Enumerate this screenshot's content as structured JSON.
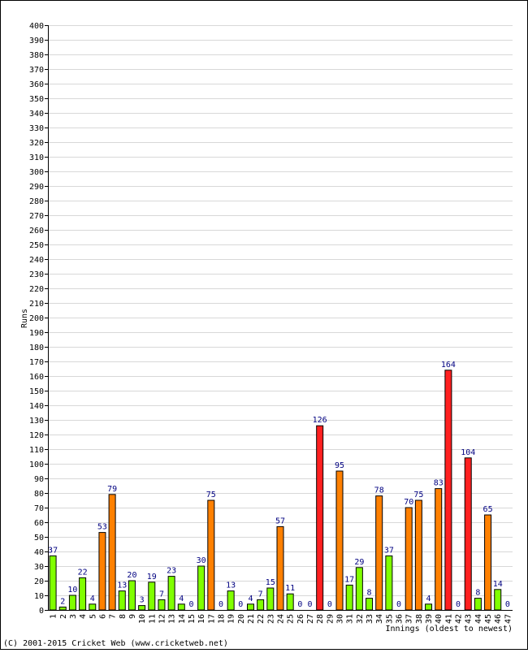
{
  "chart_data": {
    "type": "bar",
    "title": "",
    "xlabel": "Innings (oldest to newest)",
    "ylabel": "Runs",
    "ylim": [
      0,
      400
    ],
    "ytick_step": 10,
    "grid": true,
    "legend": "none",
    "categories": [
      "1",
      "2",
      "3",
      "4",
      "5",
      "6",
      "7",
      "8",
      "9",
      "10",
      "11",
      "12",
      "13",
      "14",
      "15",
      "16",
      "17",
      "18",
      "19",
      "20",
      "21",
      "22",
      "23",
      "24",
      "25",
      "26",
      "27",
      "28",
      "29",
      "30",
      "31",
      "32",
      "33",
      "34",
      "35",
      "36",
      "37",
      "38",
      "39",
      "40",
      "41",
      "42",
      "43",
      "44",
      "45",
      "46",
      "47"
    ],
    "values": [
      37,
      2,
      10,
      22,
      4,
      53,
      79,
      13,
      20,
      3,
      19,
      7,
      23,
      4,
      0,
      30,
      75,
      0,
      13,
      0,
      4,
      7,
      15,
      57,
      11,
      0,
      0,
      126,
      0,
      95,
      17,
      29,
      8,
      78,
      37,
      0,
      70,
      75,
      4,
      83,
      164,
      0,
      104,
      8,
      65,
      14,
      0
    ],
    "bands": [
      {
        "min": 0,
        "max": 49,
        "color": "#80ff00"
      },
      {
        "min": 50,
        "max": 99,
        "color": "#ff8000"
      },
      {
        "min": 100,
        "max": 1000,
        "color": "#ff2020"
      }
    ]
  },
  "footer": {
    "copyright": "(C) 2001-2015 Cricket Web (www.cricketweb.net)"
  }
}
